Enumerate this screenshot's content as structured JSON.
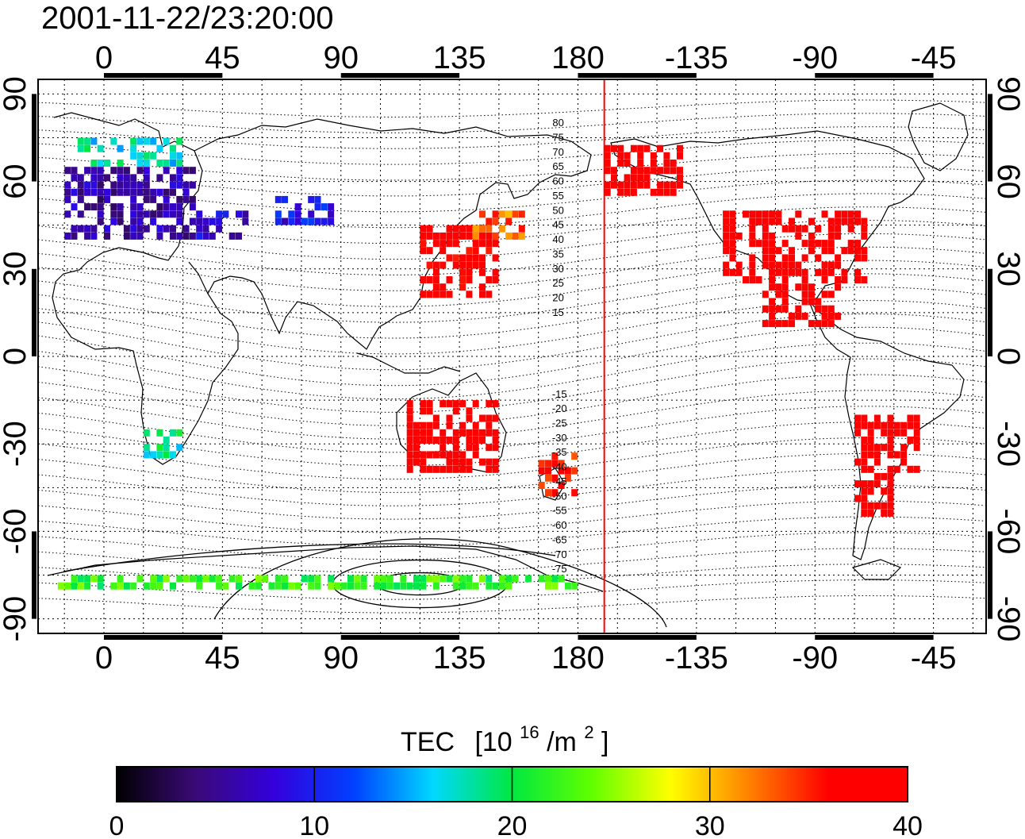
{
  "title": "2001-11-22/23:20:00",
  "colorbar": {
    "label": "TEC",
    "unit_base": "[10",
    "unit_exp": "16",
    "unit_mid": "/m",
    "unit_exp2": "2",
    "unit_end": "]",
    "min": 0,
    "max": 40,
    "ticks": [
      "0",
      "10",
      "20",
      "30",
      "40"
    ],
    "colors": [
      "#000000",
      "#3a0a78",
      "#3300dd",
      "#0040ff",
      "#00d8ff",
      "#00e840",
      "#60ff00",
      "#ffff00",
      "#ff8000",
      "#ff0000",
      "#ff0000"
    ]
  },
  "map": {
    "lon_ticks_top": [
      "0",
      "45",
      "90",
      "135",
      "180",
      "-135",
      "-90",
      "-45"
    ],
    "lon_ticks_bottom": [
      "0",
      "45",
      "90",
      "135",
      "180",
      "-135",
      "-90",
      "-45"
    ],
    "lat_ticks_left": [
      "90",
      "60",
      "30",
      "0",
      "-30",
      "-60",
      "-90"
    ],
    "lat_ticks_right": [
      "90",
      "60",
      "30",
      "0",
      "-30",
      "-60",
      "-90"
    ],
    "lon_range": [
      -25,
      335
    ],
    "lat_range": [
      -95,
      95
    ],
    "terminator_lon": 190,
    "contour_labels_north": [
      "80",
      "75",
      "70",
      "65",
      "60",
      "55",
      "50",
      "45",
      "40",
      "35",
      "30",
      "25",
      "20",
      "15"
    ],
    "contour_labels_south": [
      "-15",
      "-20",
      "-25",
      "-30",
      "-35",
      "-40",
      "-45",
      "-50",
      "-55",
      "-60",
      "-65",
      "-70",
      "-75"
    ]
  },
  "chart_data": {
    "type": "heatmap",
    "title": "2001-11-22/23:20:00",
    "xlim": [
      -25,
      335
    ],
    "ylim": [
      -95,
      95
    ],
    "colorbar_range": [
      0,
      40
    ],
    "regions": [
      {
        "lon": [
          -15,
          35
        ],
        "lat": [
          40,
          65
        ],
        "tec": 6
      },
      {
        "lon": [
          -10,
          30
        ],
        "lat": [
          65,
          75
        ],
        "tec": 17
      },
      {
        "lon": [
          35,
          55
        ],
        "lat": [
          40,
          50
        ],
        "tec": 8
      },
      {
        "lon": [
          65,
          90
        ],
        "lat": [
          45,
          55
        ],
        "tec": 9
      },
      {
        "lon": [
          120,
          150
        ],
        "lat": [
          20,
          45
        ],
        "tec": 38
      },
      {
        "lon": [
          140,
          160
        ],
        "lat": [
          40,
          50
        ],
        "tec": 33
      },
      {
        "lon": [
          190,
          220
        ],
        "lat": [
          55,
          72
        ],
        "tec": 40
      },
      {
        "lon": [
          235,
          290
        ],
        "lat": [
          25,
          50
        ],
        "tec": 40
      },
      {
        "lon": [
          250,
          280
        ],
        "lat": [
          10,
          25
        ],
        "tec": 40
      },
      {
        "lon": [
          115,
          150
        ],
        "lat": [
          -40,
          -15
        ],
        "tec": 40
      },
      {
        "lon": [
          165,
          180
        ],
        "lat": [
          -48,
          -35
        ],
        "tec": 36
      },
      {
        "lon": [
          285,
          310
        ],
        "lat": [
          -40,
          -20
        ],
        "tec": 40
      },
      {
        "lon": [
          285,
          300
        ],
        "lat": [
          -55,
          -40
        ],
        "tec": 40
      },
      {
        "lon": [
          15,
          30
        ],
        "lat": [
          -35,
          -25
        ],
        "tec": 18
      },
      {
        "lon": [
          -20,
          180
        ],
        "lat": [
          -80,
          -75
        ],
        "tec": 22
      }
    ]
  }
}
